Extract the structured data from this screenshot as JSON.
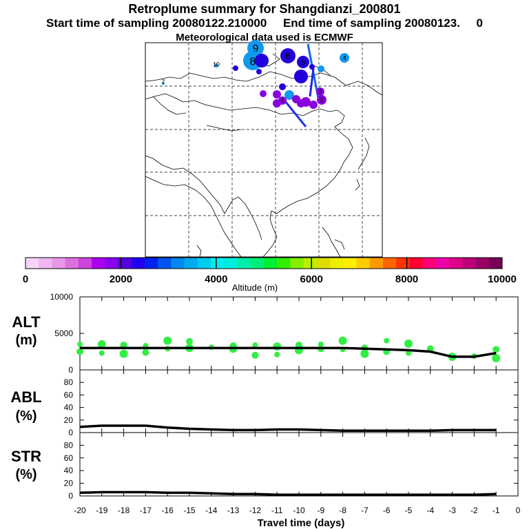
{
  "header": {
    "title": "Retroplume summary for Shangdianzi_200801",
    "start_label": "Start time of sampling 20080122.210000",
    "end_label": "End time of sampling 20080123.",
    "end_suffix": "0",
    "met_label": "Meteorological data used is ECMWF"
  },
  "colorbar": {
    "label": "Altitude (m)",
    "ticks": [
      "0",
      "2000",
      "4000",
      "6000",
      "8000",
      "10000"
    ],
    "range": [
      0,
      10000
    ],
    "colors": [
      "#f7d4f7",
      "#f0b6f0",
      "#e896e8",
      "#dc70dc",
      "#cc44dd",
      "#aa00ee",
      "#8800ee",
      "#5500dd",
      "#2200ee",
      "#0022ee",
      "#0055ee",
      "#0088ee",
      "#00aaee",
      "#00ccee",
      "#00eeee",
      "#00eedd",
      "#00eeaa",
      "#00ee77",
      "#00ee33",
      "#33ee00",
      "#88ee00",
      "#bbee00",
      "#dddd00",
      "#eeee00",
      "#ffee00",
      "#ffcc00",
      "#ff9900",
      "#ff6600",
      "#ff3300",
      "#ff0033",
      "#ff0077",
      "#ee00aa",
      "#dd0088",
      "#bb0077",
      "#990066",
      "#770055"
    ]
  },
  "map": {
    "plume_labels": [
      "9",
      "8",
      "6",
      "5",
      "4",
      "3",
      "2",
      "10",
      "1",
      "7"
    ]
  },
  "chart_data": {
    "type": "line",
    "xlabel": "Travel time (days)",
    "x_ticks": [
      "-20",
      "-19",
      "-18",
      "-17",
      "-16",
      "-15",
      "-14",
      "-13",
      "-12",
      "-11",
      "-10",
      "-9",
      "-8",
      "-7",
      "-6",
      "-5",
      "-4",
      "-3",
      "-2",
      "-1",
      "0"
    ],
    "xlim": [
      -20,
      0
    ],
    "panels": [
      {
        "name": "ALT",
        "unit": "(m)",
        "ylim": [
          0,
          10000
        ],
        "y_ticks": [
          "10000",
          "5000",
          "0"
        ],
        "series": {
          "x": [
            -20,
            -19,
            -18,
            -17,
            -16,
            -15,
            -14,
            -13,
            -12,
            -11,
            -10,
            -9,
            -8,
            -7,
            -6,
            -5,
            -4,
            -3,
            -2,
            -1
          ],
          "values": [
            3000,
            3000,
            3000,
            3000,
            3000,
            3000,
            3000,
            3000,
            3000,
            3000,
            3000,
            3000,
            3000,
            2900,
            2800,
            2700,
            2500,
            1800,
            1800,
            2300
          ]
        },
        "scatter": {
          "x": [
            -20,
            -20,
            -19,
            -19,
            -18,
            -18,
            -17,
            -17,
            -16,
            -16,
            -15,
            -15,
            -14,
            -13,
            -13,
            -12,
            -12,
            -11,
            -11,
            -10,
            -10,
            -9,
            -9,
            -8,
            -8,
            -7,
            -7,
            -6,
            -6,
            -5,
            -5,
            -4,
            -3,
            -2,
            -1,
            -1
          ],
          "values": [
            3500,
            2500,
            3500,
            2300,
            3400,
            2200,
            3300,
            2400,
            4000,
            2900,
            3900,
            3000,
            3100,
            3300,
            2900,
            3400,
            2000,
            3200,
            2100,
            3400,
            2700,
            3500,
            2900,
            4000,
            2800,
            3000,
            2200,
            4000,
            2500,
            3600,
            2300,
            2900,
            1800,
            1900,
            2800,
            1600
          ],
          "color": "#33ee44"
        }
      },
      {
        "name": "ABL",
        "unit": "(%)",
        "ylim": [
          0,
          100
        ],
        "y_ticks": [
          "80",
          "60",
          "40",
          "20",
          "0"
        ],
        "series": {
          "x": [
            -20,
            -19,
            -18,
            -17,
            -16,
            -15,
            -14,
            -13,
            -12,
            -11,
            -10,
            -9,
            -8,
            -7,
            -6,
            -5,
            -4,
            -3,
            -2,
            -1
          ],
          "values": [
            9,
            11,
            11,
            11,
            8,
            6,
            5,
            4,
            4,
            5,
            5,
            4,
            3,
            3,
            3,
            3,
            3,
            4,
            4,
            4
          ]
        }
      },
      {
        "name": "STR",
        "unit": "(%)",
        "ylim": [
          0,
          100
        ],
        "y_ticks": [
          "80",
          "60",
          "40",
          "20",
          "0"
        ],
        "series": {
          "x": [
            -20,
            -19,
            -18,
            -17,
            -16,
            -15,
            -14,
            -13,
            -12,
            -11,
            -10,
            -9,
            -8,
            -7,
            -6,
            -5,
            -4,
            -3,
            -2,
            -1
          ],
          "values": [
            5,
            6,
            6,
            6,
            5,
            5,
            4,
            3,
            3,
            2,
            2,
            2,
            2,
            2,
            2,
            2,
            2,
            2,
            2,
            3
          ]
        }
      }
    ]
  }
}
